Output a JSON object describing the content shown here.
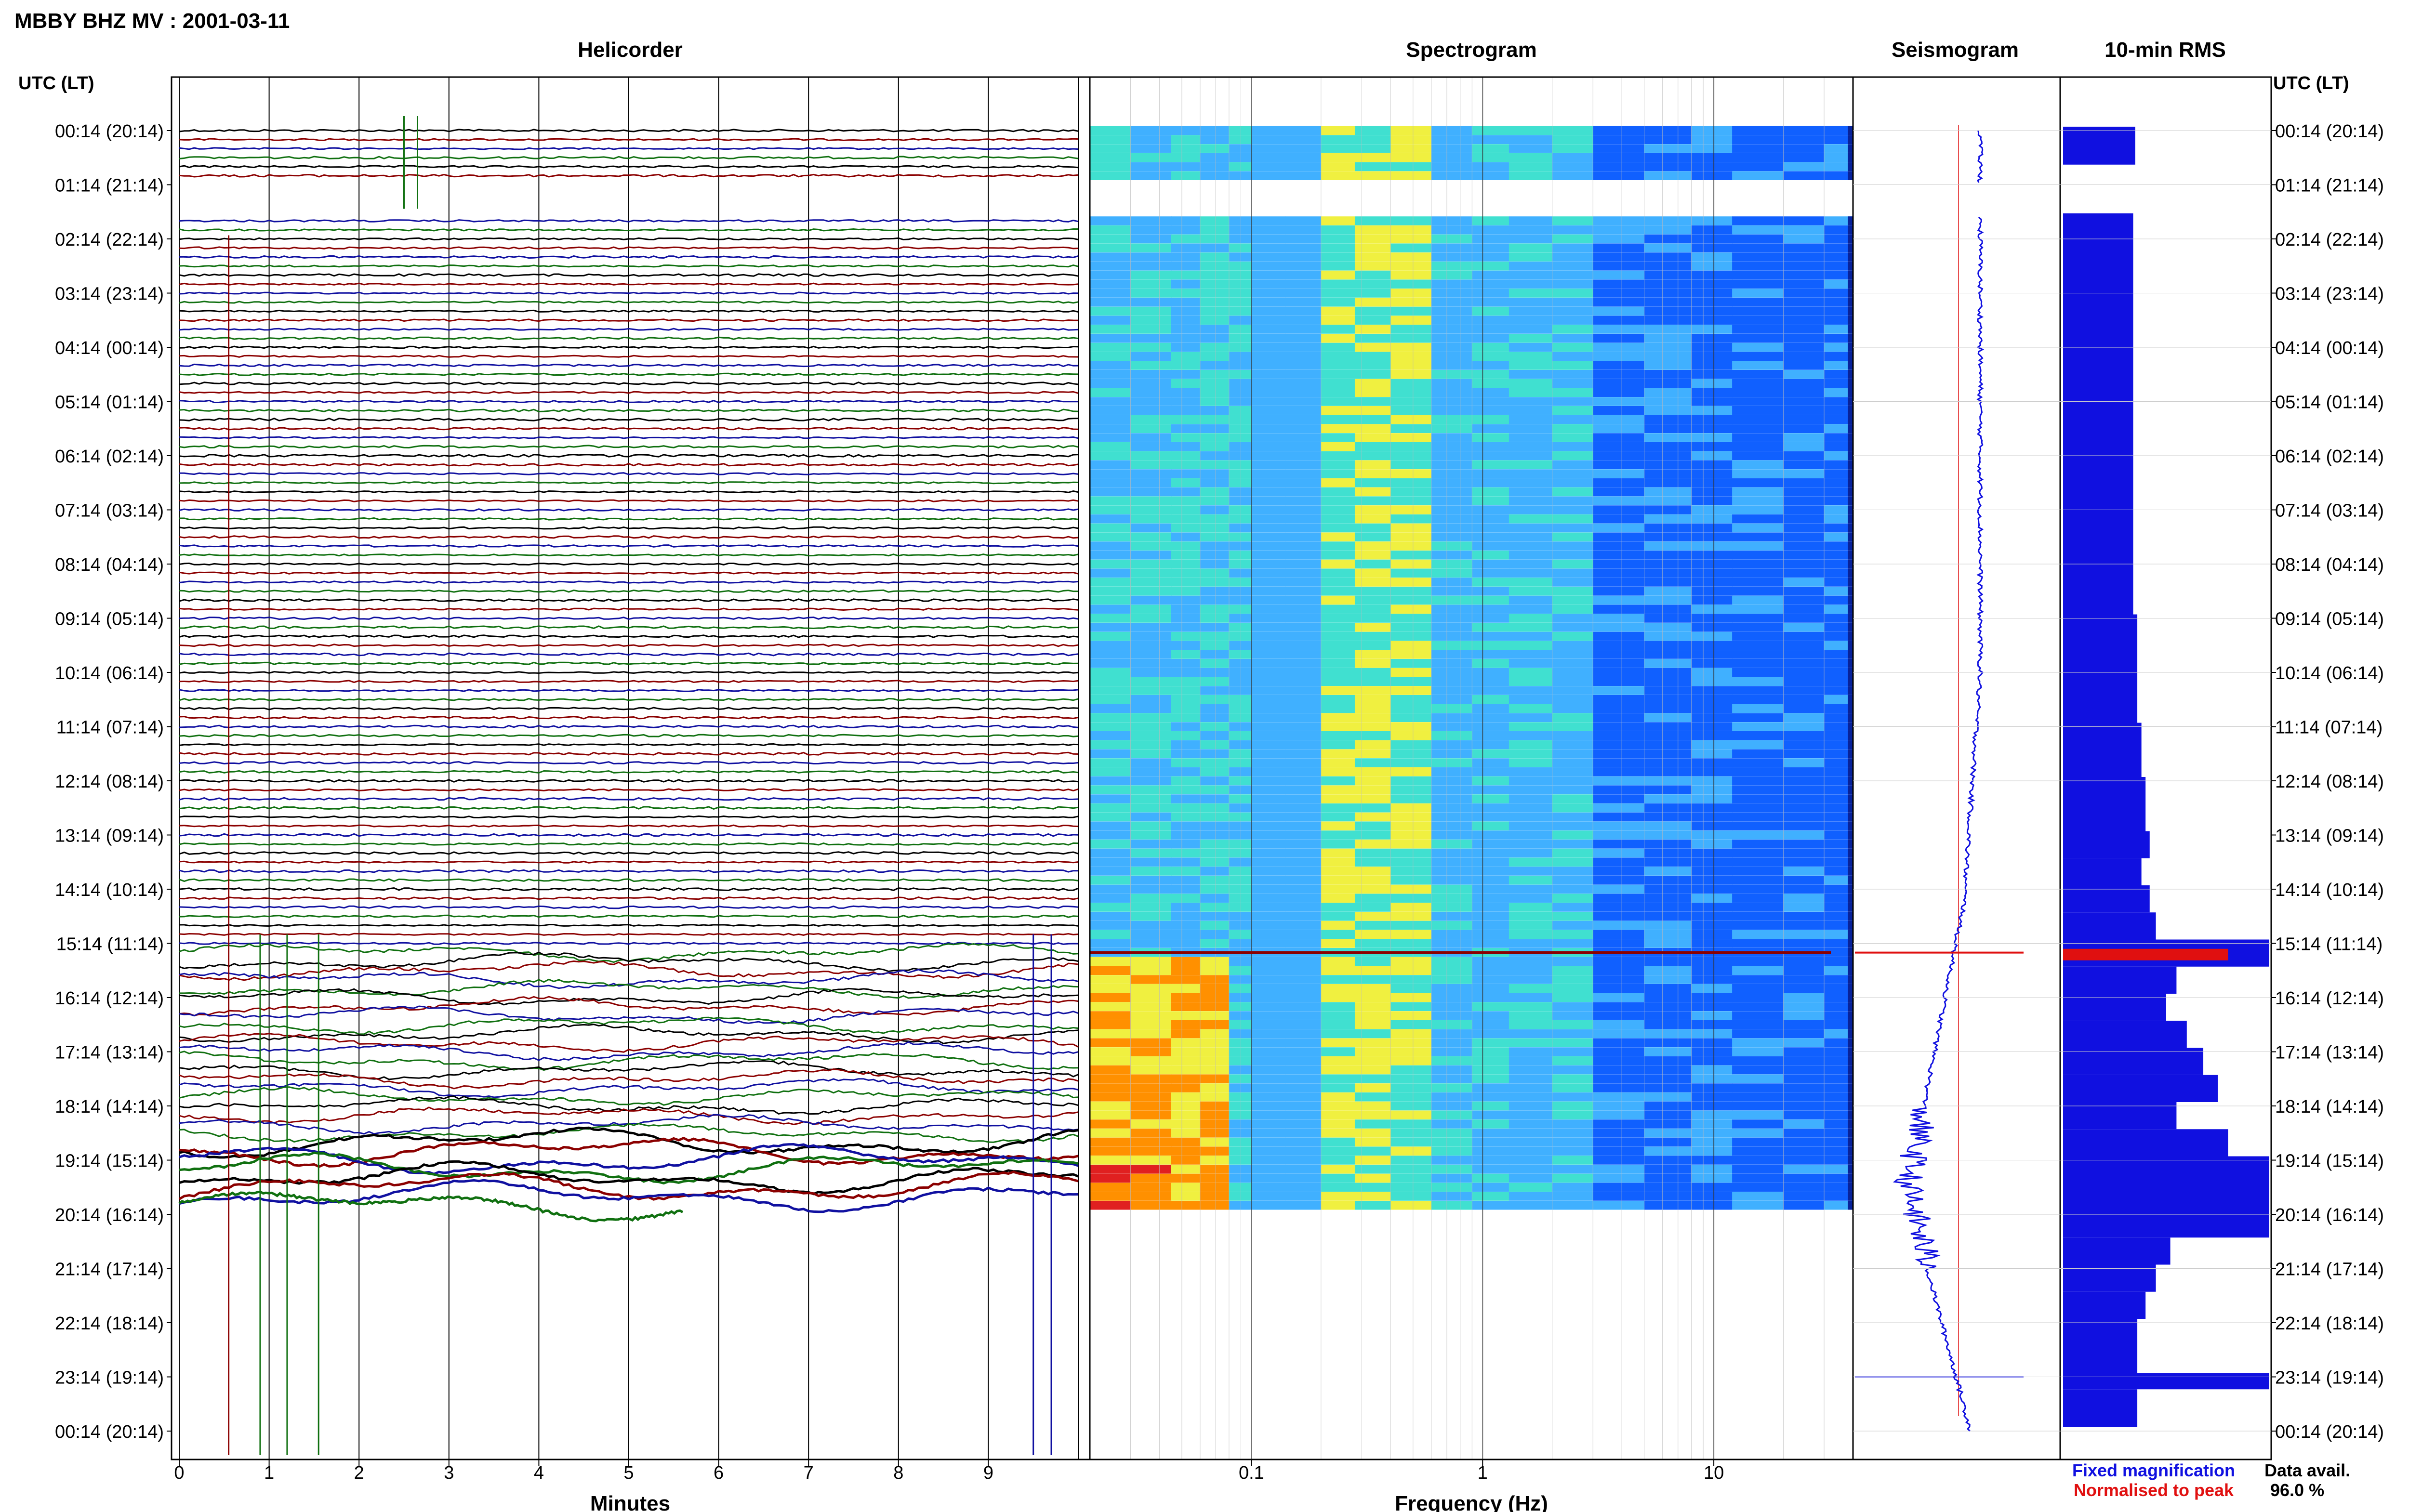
{
  "header": {
    "title": "MBBY BHZ MV : 2001-03-11",
    "time_axis_label": "UTC (LT)"
  },
  "panels": {
    "helicorder": "Helicorder",
    "spectrogram": "Spectrogram",
    "seismogram": "Seismogram",
    "rms": "10-min RMS"
  },
  "time_ticks": [
    "00:14 (20:14)",
    "01:14 (21:14)",
    "02:14 (22:14)",
    "03:14 (23:14)",
    "04:14 (00:14)",
    "05:14 (01:14)",
    "06:14 (02:14)",
    "07:14 (03:14)",
    "08:14 (04:14)",
    "09:14 (05:14)",
    "10:14 (06:14)",
    "11:14 (07:14)",
    "12:14 (08:14)",
    "13:14 (09:14)",
    "14:14 (10:14)",
    "15:14 (11:14)",
    "16:14 (12:14)",
    "17:14 (13:14)",
    "18:14 (14:14)",
    "19:14 (15:14)",
    "20:14 (16:14)",
    "21:14 (17:14)",
    "22:14 (18:14)",
    "23:14 (19:14)",
    "00:14 (20:14)"
  ],
  "legend": {
    "fixed": "Fixed magnification",
    "normalised": "Normalised to peak",
    "data_avail_label": "Data avail.",
    "data_avail_value": "96.0 %",
    "colors": {
      "fixed": "#1010e0",
      "normalised": "#e01010"
    }
  },
  "chart_data": [
    {
      "type": "line",
      "name": "helicorder",
      "xlabel": "Minutes",
      "ylabel": "UTC (LT)",
      "xlim": [
        0,
        10
      ],
      "x_ticks": [
        "0",
        "1",
        "2",
        "3",
        "4",
        "5",
        "6",
        "7",
        "8",
        "9"
      ],
      "trace_colors": [
        "#000000",
        "#8b0000",
        "#1010a0",
        "#107010"
      ],
      "trace_rows": 120,
      "rows_per_hour": 6,
      "gap_hours": [
        1.0,
        1.6
      ],
      "data_end_minute_last_row": 5.6
    },
    {
      "type": "heatmap",
      "name": "spectrogram",
      "xlabel": "Frequency (Hz)",
      "x_scale": "log",
      "xlim": [
        0.02,
        40
      ],
      "x_ticks": [
        {
          "value": 0.1,
          "label": "0.1"
        },
        {
          "value": 1,
          "label": "1"
        },
        {
          "value": 10,
          "label": "10"
        }
      ],
      "colormap": [
        "#08229a",
        "#1060ff",
        "#40b0ff",
        "#40e0d0",
        "#f0f040",
        "#ff9000",
        "#e02020"
      ],
      "event_row_hour": 15.17
    },
    {
      "type": "line",
      "name": "seismogram",
      "description_ref": "amplitude envelope over the day",
      "fixed_color": "#1010e0",
      "normalised_color": "#e01010",
      "event_row_hour": 15.17
    },
    {
      "type": "bar",
      "name": "rms",
      "orientation": "horizontal",
      "units": "relative",
      "bar_color": "#1010e0",
      "peak_color": "#e01010",
      "values_by_hour": [
        [
          0.0,
          0.35
        ],
        [
          0.7,
          0.0
        ],
        [
          1.6,
          0.34
        ],
        [
          3.0,
          0.34
        ],
        [
          6.0,
          0.34
        ],
        [
          9.0,
          0.36
        ],
        [
          11.0,
          0.38
        ],
        [
          12.0,
          0.4
        ],
        [
          13.0,
          0.42
        ],
        [
          13.5,
          0.38
        ],
        [
          14.0,
          0.42
        ],
        [
          14.5,
          0.45
        ],
        [
          15.0,
          1.0
        ],
        [
          15.5,
          0.55
        ],
        [
          16.0,
          0.5
        ],
        [
          16.5,
          0.6
        ],
        [
          17.0,
          0.68
        ],
        [
          17.5,
          0.75
        ],
        [
          18.0,
          0.55
        ],
        [
          18.5,
          0.8
        ],
        [
          19.0,
          1.0
        ],
        [
          20.0,
          1.0
        ],
        [
          20.5,
          0.52
        ],
        [
          21.0,
          0.45
        ],
        [
          21.5,
          0.4
        ],
        [
          22.0,
          0.36
        ],
        [
          23.0,
          1.0
        ],
        [
          23.3,
          0.36
        ],
        [
          24.0,
          0.0
        ]
      ]
    }
  ]
}
